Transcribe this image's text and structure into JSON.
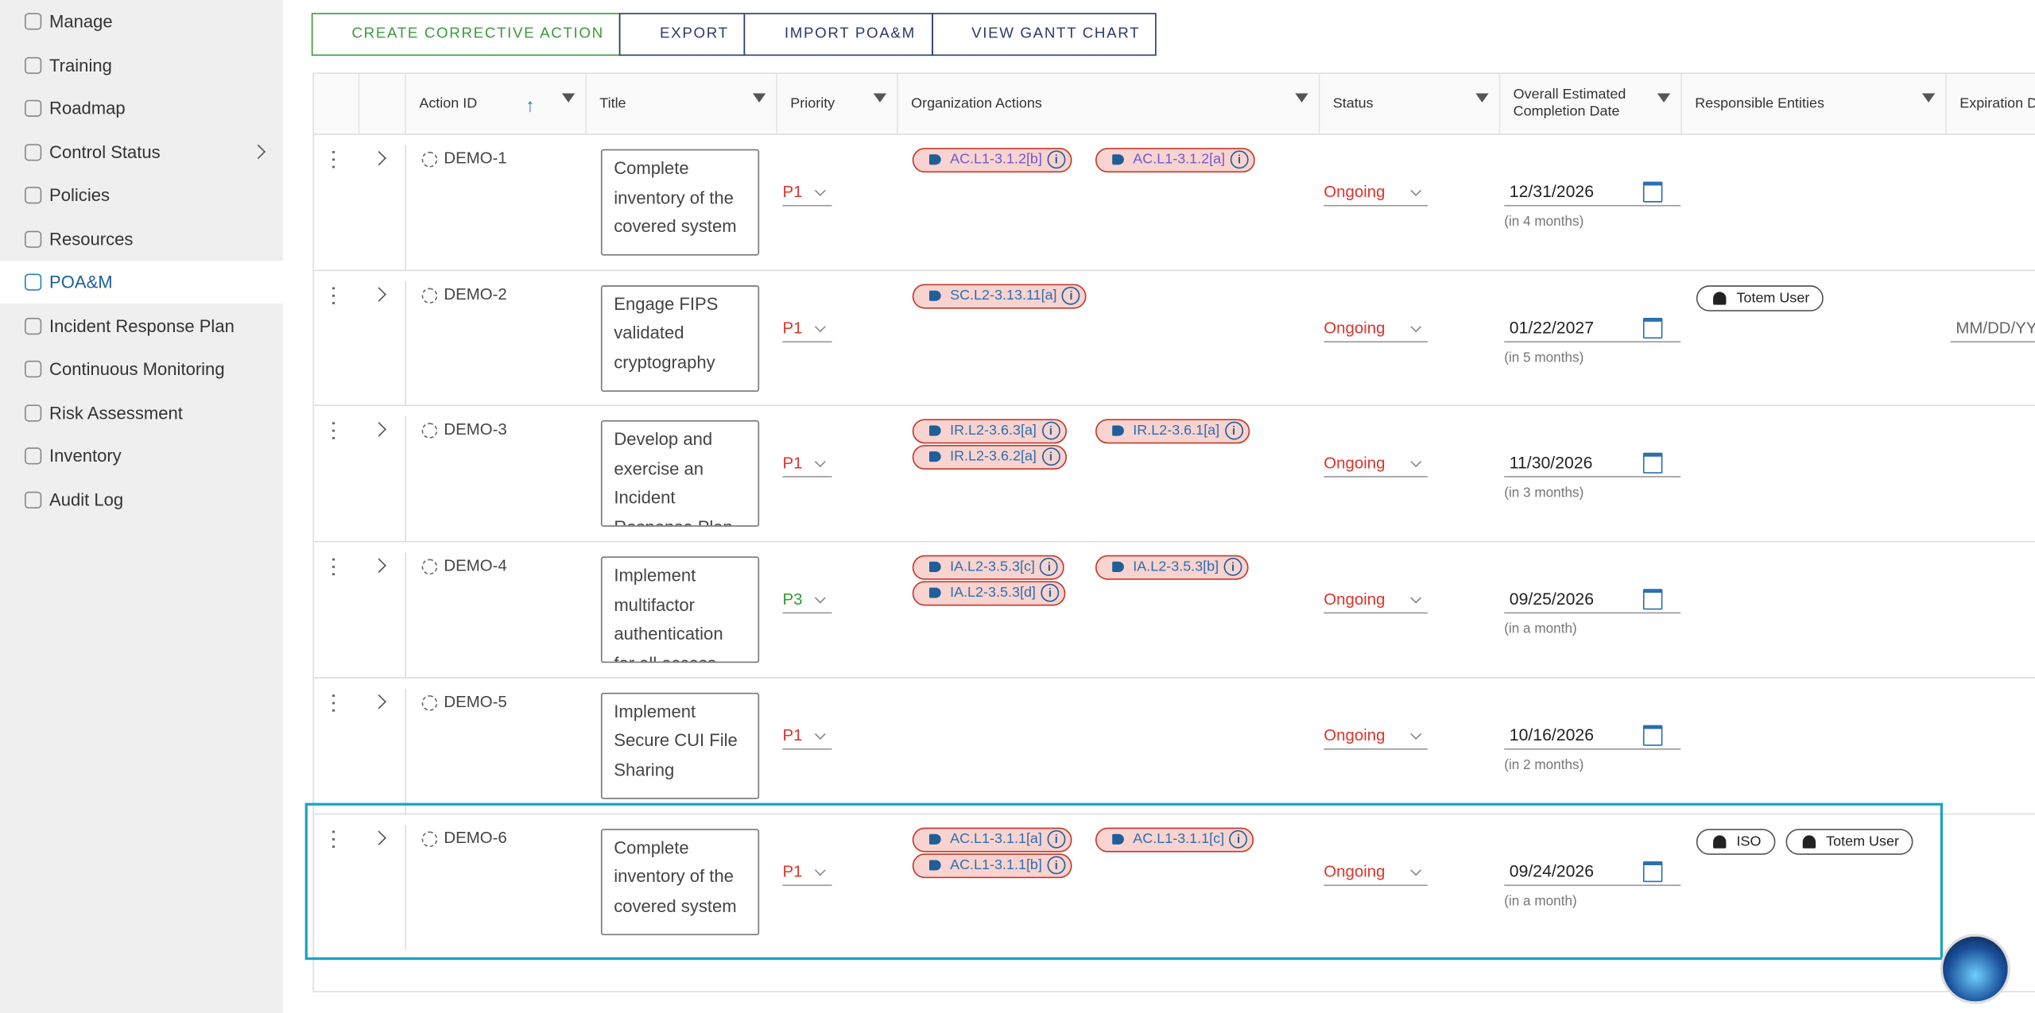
{
  "sidebar": {
    "items": [
      "Manage",
      "Training",
      "Roadmap",
      "Control Status",
      "Policies",
      "Resources",
      "POA&M",
      "Incident Response Plan",
      "Continuous Monitoring",
      "Risk Assessment",
      "Inventory",
      "Audit Log"
    ]
  },
  "toolbar": {
    "buttons": [
      "CREATE CORRECTIVE ACTION",
      "EXPORT",
      "IMPORT POA&M",
      "VIEW GANTT CHART"
    ]
  },
  "table": {
    "headers": [
      "Action ID",
      "Title",
      "Priority",
      "Organization Actions",
      "Status",
      "Overall Estimated Completion Date",
      "Responsible Entities",
      "Expiration Date"
    ],
    "rows": [
      {
        "id": "DEMO-1",
        "title": "Complete inventory of the covered system",
        "priority": "P1",
        "tags": [
          "AC.L1-3.1.2[b]",
          "AC.L1-3.1.2[a]"
        ],
        "status": "Ongoing",
        "date": "12/31/2026",
        "relative": "(in 4 months)",
        "entities": []
      },
      {
        "id": "DEMO-2",
        "title": "Engage FIPS validated cryptography",
        "priority": "P1",
        "tags": [
          "SC.L2-3.13.11[a]"
        ],
        "status": "Ongoing",
        "date": "01/22/2027",
        "relative": "(in 5 months)",
        "entities": [
          "Totem User"
        ],
        "expiration": "MM/DD/YYYY"
      },
      {
        "id": "DEMO-3",
        "title": "Develop and exercise an Incident Response Plan",
        "priority": "P1",
        "tags": [
          "IR.L2-3.6.3[a]",
          "IR.L2-3.6.1[a]",
          "IR.L2-3.6.2[a]"
        ],
        "status": "Ongoing",
        "date": "11/30/2026",
        "relative": "(in 3 months)",
        "entities": []
      },
      {
        "id": "DEMO-4",
        "title": "Implement multifactor authentication for all access",
        "priority": "P3",
        "tags": [
          "IA.L2-3.5.3[c]",
          "IA.L2-3.5.3[b]",
          "IA.L2-3.5.3[d]"
        ],
        "status": "Ongoing",
        "date": "09/25/2026",
        "relative": "(in a month)",
        "entities": []
      },
      {
        "id": "DEMO-5",
        "title": "Implement Secure CUI File Sharing",
        "priority": "P1",
        "tags": [],
        "status": "Ongoing",
        "date": "10/16/2026",
        "relative": "(in 2 months)",
        "entities": []
      },
      {
        "id": "DEMO-6",
        "title": "Complete inventory of the covered system",
        "priority": "P1",
        "tags": [
          "AC.L1-3.1.1[a]",
          "AC.L1-3.1.1[c]",
          "AC.L1-3.1.1[b]"
        ],
        "status": "Ongoing",
        "date": "09/24/2026",
        "relative": "(in a month)",
        "entities": [
          "ISO",
          "Totem User"
        ]
      }
    ]
  }
}
